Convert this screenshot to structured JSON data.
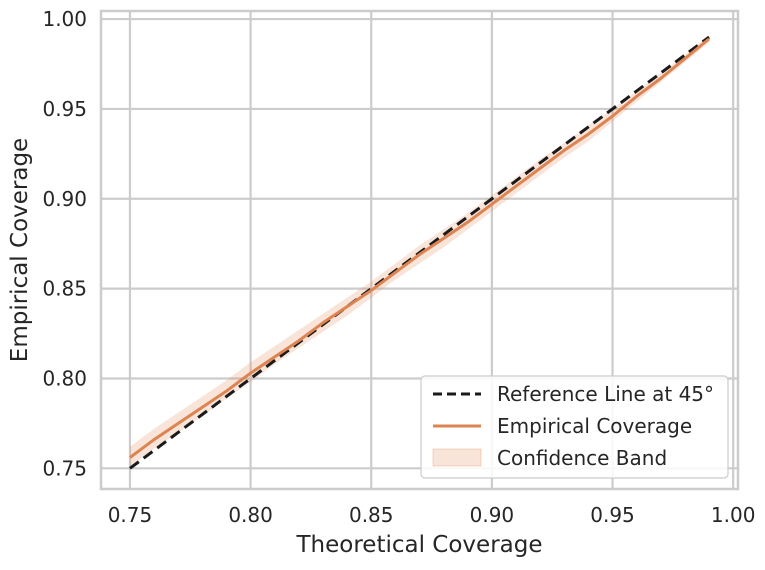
{
  "chart_data": {
    "type": "line",
    "title": "",
    "xlabel": "Theoretical Coverage",
    "ylabel": "Empirical Coverage",
    "xlim": [
      0.738,
      1.002
    ],
    "ylim": [
      0.7385,
      1.0045
    ],
    "xticks": [
      "0.75",
      "0.80",
      "0.85",
      "0.90",
      "0.95",
      "1.00"
    ],
    "yticks": [
      "0.75",
      "0.80",
      "0.85",
      "0.90",
      "0.95",
      "1.00"
    ],
    "grid": true,
    "legend_position": "lower-right",
    "legend": [
      "Reference Line at 45°",
      "Empirical Coverage",
      "Confidence Band"
    ],
    "series": [
      {
        "name": "Reference Line at 45°",
        "style": "dashed",
        "color": "#1a1a1a",
        "x": [
          0.75,
          0.99
        ],
        "y": [
          0.75,
          0.99
        ]
      },
      {
        "name": "Empirical Coverage",
        "style": "solid",
        "color": "#dd8452",
        "x": [
          0.75,
          0.76,
          0.77,
          0.78,
          0.79,
          0.8,
          0.81,
          0.82,
          0.83,
          0.84,
          0.85,
          0.86,
          0.87,
          0.88,
          0.89,
          0.9,
          0.91,
          0.92,
          0.93,
          0.94,
          0.95,
          0.96,
          0.97,
          0.98,
          0.99
        ],
        "y": [
          0.756,
          0.766,
          0.775,
          0.784,
          0.793,
          0.803,
          0.812,
          0.821,
          0.831,
          0.84,
          0.849,
          0.859,
          0.869,
          0.878,
          0.887,
          0.897,
          0.907,
          0.917,
          0.927,
          0.936,
          0.946,
          0.957,
          0.967,
          0.978,
          0.989
        ]
      },
      {
        "name": "Confidence Band",
        "style": "band",
        "color": "#dd8452",
        "x": [
          0.75,
          0.76,
          0.77,
          0.78,
          0.79,
          0.8,
          0.81,
          0.82,
          0.83,
          0.84,
          0.85,
          0.86,
          0.87,
          0.88,
          0.89,
          0.9,
          0.91,
          0.92,
          0.93,
          0.94,
          0.95,
          0.96,
          0.97,
          0.98,
          0.99
        ],
        "lower": [
          0.751,
          0.761,
          0.77,
          0.779,
          0.789,
          0.798,
          0.808,
          0.817,
          0.826,
          0.835,
          0.845,
          0.855,
          0.864,
          0.873,
          0.883,
          0.893,
          0.903,
          0.913,
          0.923,
          0.932,
          0.943,
          0.954,
          0.965,
          0.976,
          0.987
        ],
        "upper": [
          0.762,
          0.772,
          0.781,
          0.79,
          0.799,
          0.809,
          0.818,
          0.827,
          0.836,
          0.845,
          0.854,
          0.864,
          0.874,
          0.883,
          0.892,
          0.902,
          0.912,
          0.922,
          0.931,
          0.941,
          0.95,
          0.96,
          0.97,
          0.98,
          0.991
        ]
      }
    ]
  }
}
